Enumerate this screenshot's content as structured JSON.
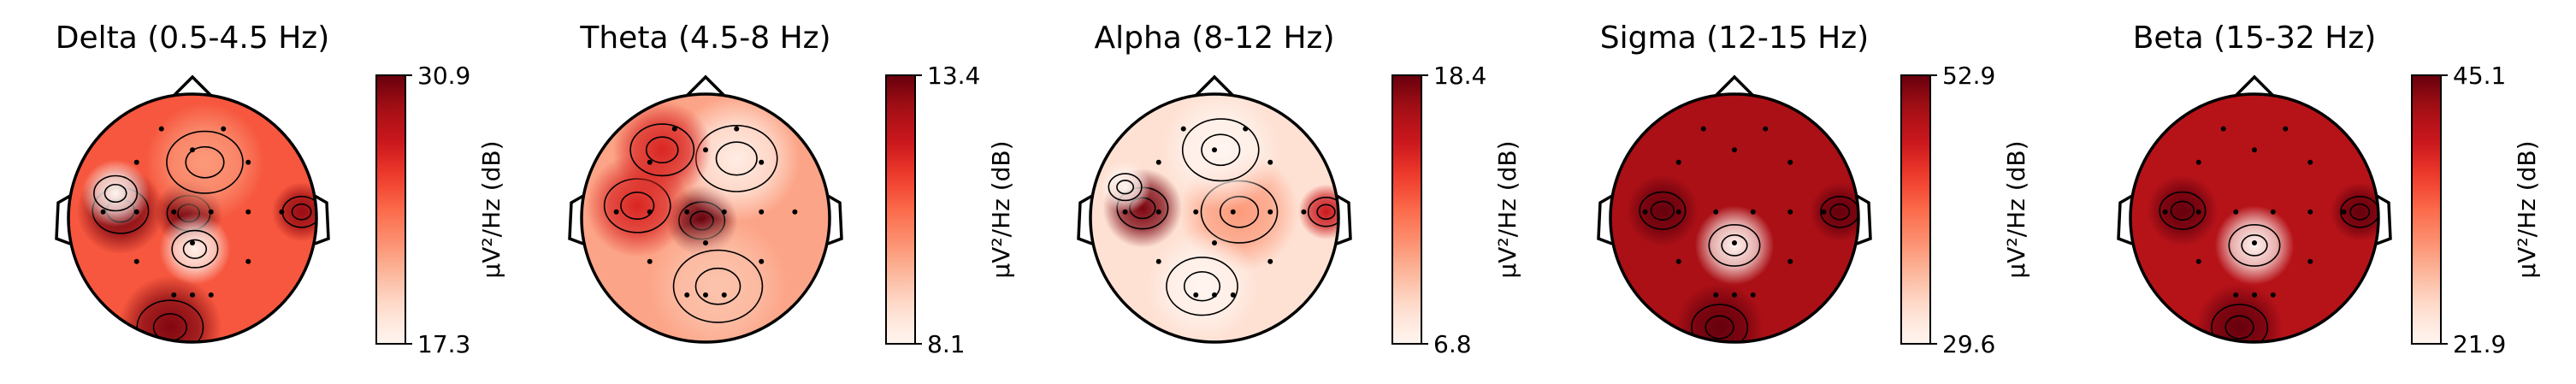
{
  "chart_data": [
    {
      "type": "heatmap",
      "title": "Delta (0.5-4.5 Hz)",
      "colorbar": {
        "label": "µV²/Hz (dB)",
        "min": 17.3,
        "max": 30.9,
        "min_label": "17.3",
        "max_label": "30.9"
      },
      "colormap": "Reds",
      "background_level": 0.55,
      "blobs": [
        {
          "x": -0.58,
          "y": 0.06,
          "level": 0.96,
          "radius": 0.22
        },
        {
          "x": -0.03,
          "y": 0.04,
          "level": 0.98,
          "radius": 0.17
        },
        {
          "x": -0.18,
          "y": -0.88,
          "level": 0.95,
          "radius": 0.26
        },
        {
          "x": -0.62,
          "y": 0.2,
          "level": 0.0,
          "radius": 0.17
        },
        {
          "x": 0.02,
          "y": -0.25,
          "level": 0.02,
          "radius": 0.18
        },
        {
          "x": 0.1,
          "y": 0.45,
          "level": 0.35,
          "radius": 0.3
        },
        {
          "x": 0.88,
          "y": 0.05,
          "level": 0.9,
          "radius": 0.15
        }
      ]
    },
    {
      "type": "heatmap",
      "title": "Theta (4.5-8 Hz)",
      "colorbar": {
        "label": "µV²/Hz (dB)",
        "min": 8.1,
        "max": 13.4,
        "min_label": "8.1",
        "max_label": "13.4"
      },
      "colormap": "Reds",
      "background_level": 0.32,
      "blobs": [
        {
          "x": -0.03,
          "y": -0.02,
          "level": 1.0,
          "radius": 0.18
        },
        {
          "x": -0.55,
          "y": 0.1,
          "level": 0.7,
          "radius": 0.26
        },
        {
          "x": 0.25,
          "y": 0.48,
          "level": 0.05,
          "radius": 0.32
        },
        {
          "x": -0.35,
          "y": 0.55,
          "level": 0.7,
          "radius": 0.25
        },
        {
          "x": 0.1,
          "y": -0.55,
          "level": 0.22,
          "radius": 0.35
        }
      ]
    },
    {
      "type": "heatmap",
      "title": "Alpha (8-12 Hz)",
      "colorbar": {
        "label": "µV²/Hz (dB)",
        "min": 6.8,
        "max": 18.4,
        "min_label": "6.8",
        "max_label": "18.4"
      },
      "colormap": "Reds",
      "background_level": 0.12,
      "blobs": [
        {
          "x": -0.58,
          "y": 0.08,
          "level": 0.96,
          "radius": 0.2
        },
        {
          "x": -0.72,
          "y": 0.25,
          "level": 0.0,
          "radius": 0.13
        },
        {
          "x": 0.2,
          "y": 0.05,
          "level": 0.35,
          "radius": 0.3
        },
        {
          "x": 0.9,
          "y": 0.05,
          "level": 0.75,
          "radius": 0.14
        },
        {
          "x": 0.05,
          "y": 0.55,
          "level": 0.0,
          "radius": 0.3
        },
        {
          "x": -0.1,
          "y": -0.55,
          "level": 0.0,
          "radius": 0.28
        }
      ]
    },
    {
      "type": "heatmap",
      "title": "Sigma (12-15 Hz)",
      "colorbar": {
        "label": "µV²/Hz (dB)",
        "min": 29.6,
        "max": 52.9,
        "min_label": "29.6",
        "max_label": "52.9"
      },
      "colormap": "Reds",
      "background_level": 0.86,
      "blobs": [
        {
          "x": 0.0,
          "y": -0.22,
          "level": 0.0,
          "radius": 0.2
        },
        {
          "x": -0.58,
          "y": 0.06,
          "level": 1.0,
          "radius": 0.18
        },
        {
          "x": -0.12,
          "y": -0.88,
          "level": 1.0,
          "radius": 0.22
        },
        {
          "x": 0.85,
          "y": 0.05,
          "level": 1.0,
          "radius": 0.15
        }
      ]
    },
    {
      "type": "heatmap",
      "title": "Beta (15-32 Hz)",
      "colorbar": {
        "label": "µV²/Hz (dB)",
        "min": 21.9,
        "max": 45.1,
        "min_label": "21.9",
        "max_label": "45.1"
      },
      "colormap": "Reds",
      "background_level": 0.82,
      "blobs": [
        {
          "x": 0.0,
          "y": -0.22,
          "level": 0.0,
          "radius": 0.2
        },
        {
          "x": -0.58,
          "y": 0.06,
          "level": 1.0,
          "radius": 0.18
        },
        {
          "x": -0.12,
          "y": -0.88,
          "level": 1.0,
          "radius": 0.22
        },
        {
          "x": 0.85,
          "y": 0.05,
          "level": 1.0,
          "radius": 0.15
        }
      ]
    }
  ],
  "sensors": [
    [
      -0.25,
      0.72
    ],
    [
      0.25,
      0.72
    ],
    [
      0.0,
      0.55
    ],
    [
      -0.45,
      0.45
    ],
    [
      0.45,
      0.45
    ],
    [
      -0.72,
      0.05
    ],
    [
      -0.45,
      0.05
    ],
    [
      -0.15,
      0.05
    ],
    [
      0.15,
      0.05
    ],
    [
      0.45,
      0.05
    ],
    [
      0.72,
      0.05
    ],
    [
      -0.45,
      -0.35
    ],
    [
      0.0,
      -0.2
    ],
    [
      0.45,
      -0.35
    ],
    [
      -0.15,
      -0.62
    ],
    [
      0.0,
      -0.62
    ],
    [
      0.15,
      -0.62
    ]
  ]
}
